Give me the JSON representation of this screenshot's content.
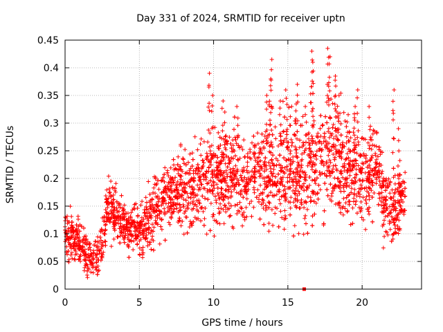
{
  "chart_data": {
    "type": "scatter",
    "title": "Day 331 of 2024, SRMTID for receiver uptn",
    "xlabel": "GPS time / hours",
    "ylabel": "SRMTID / TECUs",
    "xlim": [
      0,
      24
    ],
    "ylim": [
      0,
      0.45
    ],
    "xticks": [
      0,
      5,
      10,
      15,
      20
    ],
    "xtick_labels": [
      "0",
      "5",
      "10",
      "15",
      "20"
    ],
    "yticks": [
      0,
      0.05,
      0.1,
      0.15,
      0.2,
      0.25,
      0.3,
      0.35,
      0.4,
      0.45
    ],
    "ytick_labels": [
      "0",
      "0.05",
      "0.1",
      "0.15",
      "0.2",
      "0.25",
      "0.3",
      "0.35",
      "0.4",
      "0.45"
    ],
    "grid": true,
    "marker": "+",
    "color": "#ff0000",
    "trend": {
      "x": [
        0,
        0.5,
        1,
        1.5,
        2,
        2.5,
        3,
        3.5,
        4,
        4.5,
        5,
        5.5,
        6,
        6.5,
        7,
        7.5,
        8,
        8.5,
        9,
        9.5,
        10,
        11,
        12,
        13,
        14,
        15,
        16,
        17,
        18,
        19,
        20,
        21,
        21.5,
        22,
        22.5,
        22.9
      ],
      "y": [
        0.11,
        0.09,
        0.085,
        0.06,
        0.05,
        0.09,
        0.16,
        0.13,
        0.11,
        0.11,
        0.11,
        0.12,
        0.14,
        0.16,
        0.17,
        0.18,
        0.19,
        0.17,
        0.19,
        0.2,
        0.2,
        0.2,
        0.2,
        0.22,
        0.21,
        0.22,
        0.2,
        0.23,
        0.24,
        0.22,
        0.2,
        0.22,
        0.17,
        0.14,
        0.16,
        0.17
      ]
    },
    "spread": {
      "x": [
        0,
        2,
        3,
        4,
        6,
        8,
        10,
        12,
        14,
        16,
        18,
        20,
        22,
        23
      ],
      "y": [
        0.035,
        0.03,
        0.04,
        0.03,
        0.045,
        0.055,
        0.07,
        0.06,
        0.07,
        0.075,
        0.08,
        0.065,
        0.05,
        0.04
      ]
    },
    "peaks": [
      {
        "x": 9.7,
        "y": 0.39
      },
      {
        "x": 9.9,
        "y": 0.35
      },
      {
        "x": 10.6,
        "y": 0.34
      },
      {
        "x": 11.6,
        "y": 0.33
      },
      {
        "x": 13.6,
        "y": 0.35
      },
      {
        "x": 13.8,
        "y": 0.38
      },
      {
        "x": 13.9,
        "y": 0.415
      },
      {
        "x": 14.9,
        "y": 0.36
      },
      {
        "x": 15.6,
        "y": 0.37
      },
      {
        "x": 16.6,
        "y": 0.43
      },
      {
        "x": 16.7,
        "y": 0.41
      },
      {
        "x": 17.7,
        "y": 0.435
      },
      {
        "x": 17.8,
        "y": 0.42
      },
      {
        "x": 18.2,
        "y": 0.385
      },
      {
        "x": 18.4,
        "y": 0.35
      },
      {
        "x": 19.5,
        "y": 0.33
      },
      {
        "x": 19.7,
        "y": 0.36
      },
      {
        "x": 20.5,
        "y": 0.33
      },
      {
        "x": 22.1,
        "y": 0.36
      },
      {
        "x": 22.5,
        "y": 0.29
      },
      {
        "x": 10.8,
        "y": 0.32
      },
      {
        "x": 14.5,
        "y": 0.34
      },
      {
        "x": 15.2,
        "y": 0.33
      },
      {
        "x": 16.2,
        "y": 0.33
      }
    ],
    "points_per_hour": 140,
    "x_end": 22.9,
    "outlier": {
      "x": 16.1,
      "y": 0.0
    }
  }
}
